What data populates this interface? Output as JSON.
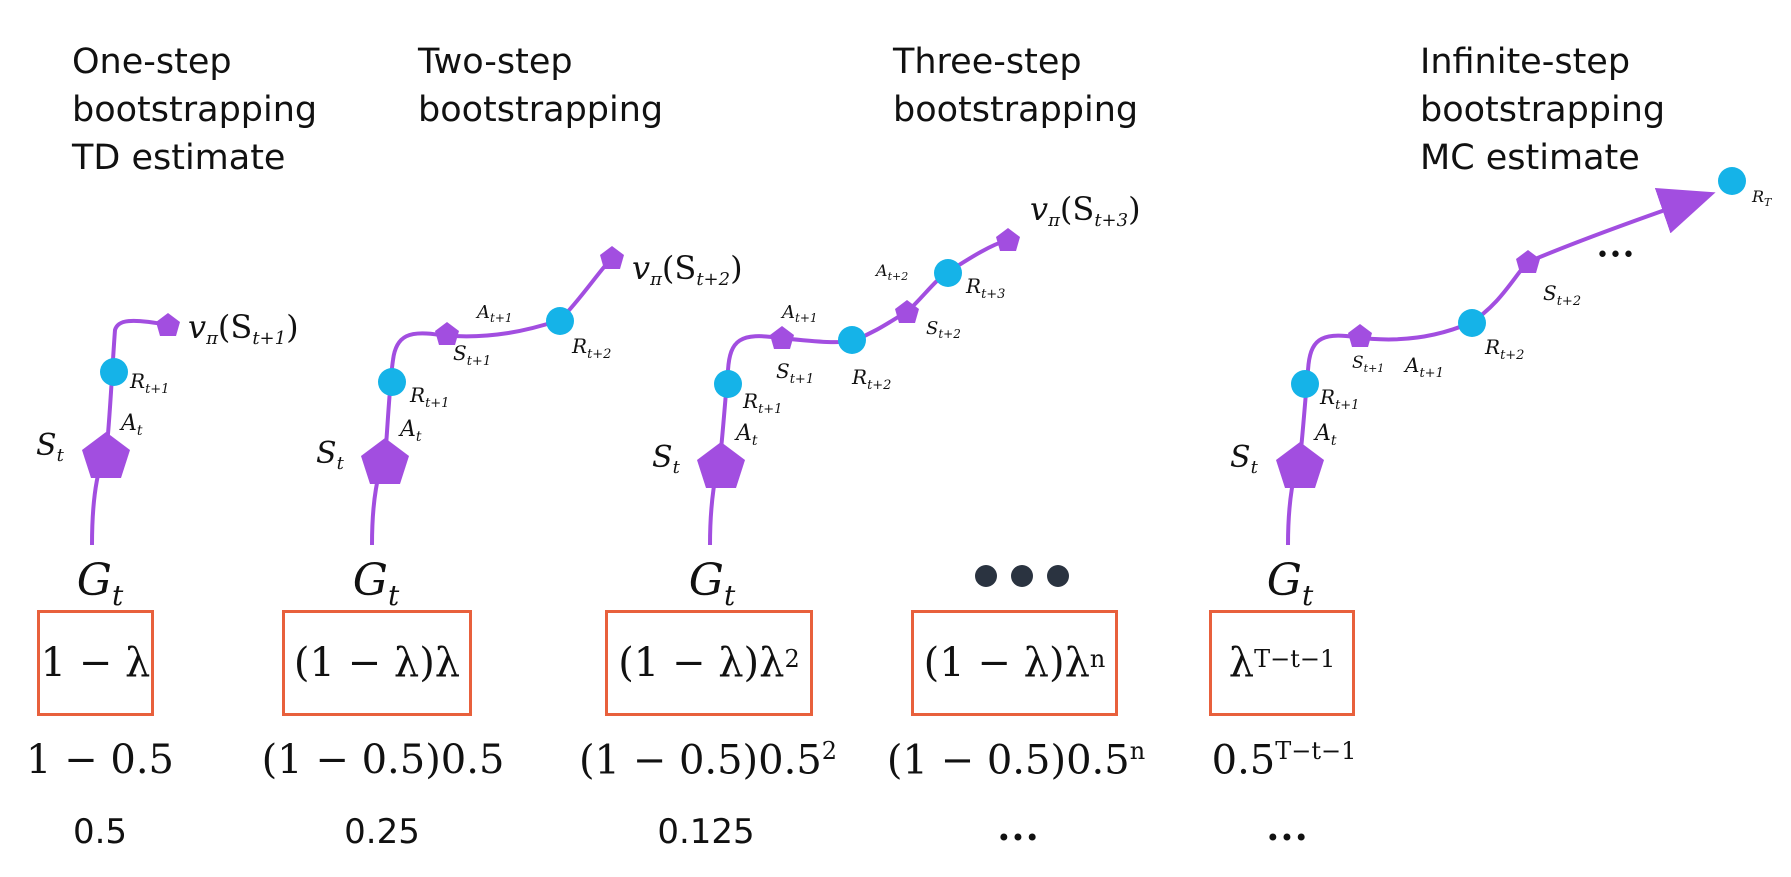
{
  "columns": [
    {
      "title": [
        "One-step",
        "bootstrapping",
        "TD estimate"
      ],
      "return_label": "G_t",
      "weight_expr": "1 − λ",
      "example_expr": "1 − 0.5",
      "example_value": "0.5"
    },
    {
      "title": [
        "Two-step",
        "bootstrapping"
      ],
      "return_label": "G_t",
      "weight_expr": "(1 − λ)λ",
      "example_expr": "(1 − 0.5)0.5",
      "example_value": "0.25"
    },
    {
      "title": [
        "Three-step",
        "bootstrapping"
      ],
      "return_label": "G_t",
      "weight_expr": "(1 − λ)λ",
      "weight_sup": "2",
      "example_expr": "(1 − 0.5)0.5",
      "example_sup": "2",
      "example_value": "0.125"
    },
    {
      "title": [],
      "return_label": "•••",
      "weight_expr": "(1 − λ)λ",
      "weight_sup": "n",
      "example_expr": "(1 − 0.5)0.5",
      "example_sup": "n",
      "example_value": "•••"
    },
    {
      "title": [
        "Infinite-step",
        "bootstrapping",
        "MC estimate"
      ],
      "return_label": "G_t",
      "weight_expr": "λ",
      "weight_sup": "T−t−1",
      "example_expr": "0.5",
      "example_sup": "T−t−1",
      "example_value": "•••"
    }
  ],
  "labels": {
    "g": "G",
    "g_sub": "t",
    "st": "S",
    "st_sub": "t",
    "at": "A",
    "at_sub": "t",
    "r1": "R",
    "r1_sub": "t+1",
    "r2": "R",
    "r2_sub": "t+2",
    "r3": "R",
    "r3_sub": "t+3",
    "s1": "S",
    "s1_sub": "t+1",
    "s2": "S",
    "s2_sub": "t+2",
    "a1": "A",
    "a1_sub": "t+1",
    "a2": "A",
    "a2_sub": "t+2",
    "rT": "R",
    "rT_sub": "T",
    "v1": "v",
    "v_pi": "π",
    "v1_arg": "(S",
    "v1_sub": "t+1",
    "v2_sub": "t+2",
    "v3_sub": "t+3",
    "close": ")",
    "ellipsis": "•••"
  },
  "colors": {
    "path": "#a24ee0",
    "state": "#a24ee0",
    "reward": "#15b3e8",
    "box_border": "#e8603c",
    "dots": "#2a3340"
  }
}
